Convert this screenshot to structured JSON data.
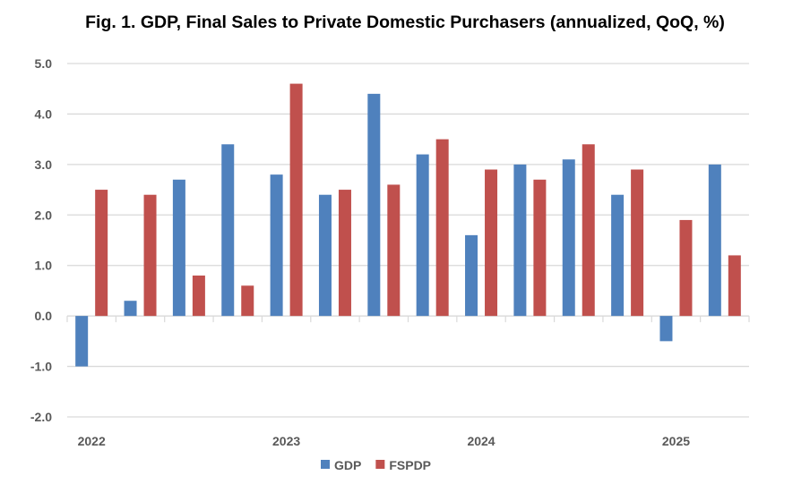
{
  "chart_data": {
    "type": "bar",
    "title": "Fig. 1. GDP, Final Sales to Private Domestic Purchasers (annualized, QoQ, %)",
    "xlabel": "",
    "ylabel": "",
    "categories": [
      "2022Q1",
      "2022Q2",
      "2022Q3",
      "2022Q4",
      "2023Q1",
      "2023Q2",
      "2023Q3",
      "2023Q4",
      "2024Q1",
      "2024Q2",
      "2024Q3",
      "2024Q4",
      "2025Q1",
      "2025Q2"
    ],
    "x_tick_labels": [
      "2022",
      "",
      "",
      "",
      "2023",
      "",
      "",
      "",
      "2024",
      "",
      "",
      "",
      "2025",
      ""
    ],
    "ylim": [
      -2.0,
      5.0
    ],
    "y_ticks": [
      "-2.0",
      "-1.0",
      "0.0",
      "1.0",
      "2.0",
      "3.0",
      "4.0",
      "5.0"
    ],
    "grid": true,
    "legend_position": "bottom",
    "series": [
      {
        "name": "GDP",
        "color": "#4f81bd",
        "values": [
          -1.0,
          0.3,
          2.7,
          3.4,
          2.8,
          2.4,
          4.4,
          3.2,
          1.6,
          3.0,
          3.1,
          2.4,
          -0.5,
          3.0
        ]
      },
      {
        "name": "FSPDP",
        "color": "#c0504d",
        "values": [
          2.5,
          2.4,
          0.8,
          0.6,
          4.6,
          2.5,
          2.6,
          3.5,
          2.9,
          2.7,
          3.4,
          2.9,
          1.9,
          1.2
        ]
      }
    ]
  }
}
